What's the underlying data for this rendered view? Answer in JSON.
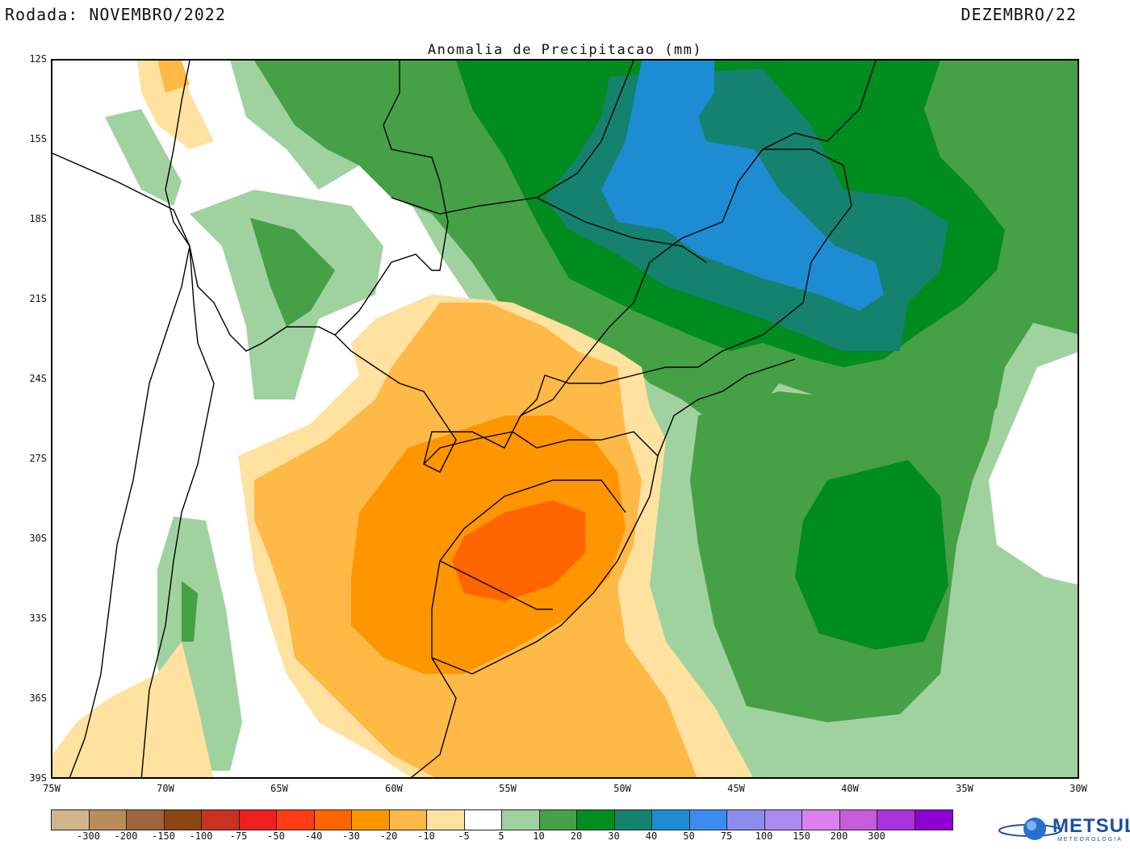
{
  "header": {
    "run": "Rodada: NOVEMBRO/2022",
    "month": "DEZEMBRO/22"
  },
  "map": {
    "title": "Anomalia de Precipitacao (mm)",
    "lat_labels": [
      "12S",
      "15S",
      "18S",
      "21S",
      "24S",
      "27S",
      "30S",
      "33S",
      "36S",
      "39S"
    ],
    "lon_labels": [
      "75W",
      "70W",
      "65W",
      "60W",
      "55W",
      "50W",
      "45W",
      "40W",
      "35W",
      "30W"
    ]
  },
  "colorbar": {
    "colors": [
      "#d2b48c",
      "#b98c5a",
      "#a0643c",
      "#8b4513",
      "#c8321e",
      "#f01e1e",
      "#ff3c14",
      "#ff6400",
      "#ff9600",
      "#ffb946",
      "#ffe1a0",
      "#ffffff",
      "#a0d2a0",
      "#46a046",
      "#008c1e",
      "#14826e",
      "#1e8cd2",
      "#3c8cf0",
      "#8c8cf0",
      "#aa8cf0",
      "#dc82f0",
      "#c85adc",
      "#aa32dc",
      "#8c00d2"
    ],
    "labels": [
      "-300",
      "-200",
      "-150",
      "-100",
      "-75",
      "-50",
      "-40",
      "-30",
      "-20",
      "-10",
      "-5",
      "5",
      "10",
      "20",
      "30",
      "40",
      "50",
      "75",
      "100",
      "150",
      "200",
      "300"
    ]
  },
  "logo": {
    "text": "METSUL",
    "subtitle": "METEOROLOGIA"
  }
}
